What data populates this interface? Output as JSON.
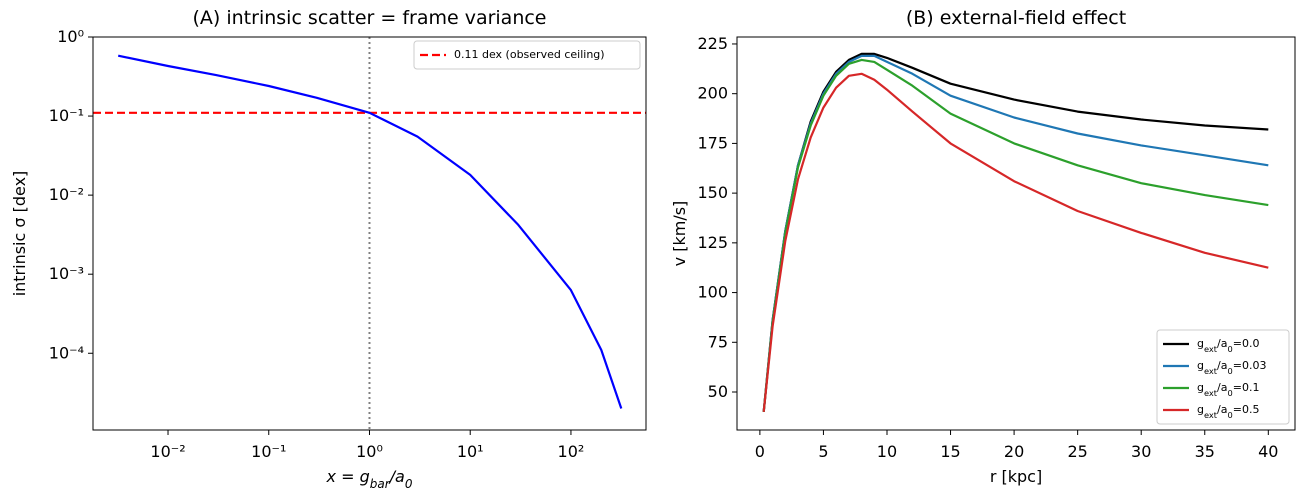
{
  "chart_data": [
    {
      "type": "line",
      "title": "(A) intrinsic scatter = frame variance",
      "x_label": "x = g_{bar}/a_{0}",
      "y_label": "intrinsic σ [dex]",
      "xscale": "log",
      "yscale": "log",
      "xlim": [
        0.0018,
        556
      ],
      "ylim": [
        1.07e-05,
        1
      ],
      "xticks": [
        {
          "value": 0.01,
          "label": "10⁻²"
        },
        {
          "value": 0.1,
          "label": "10⁻¹"
        },
        {
          "value": 1,
          "label": "10⁰"
        },
        {
          "value": 10,
          "label": "10¹"
        },
        {
          "value": 100,
          "label": "10²"
        }
      ],
      "yticks": [
        {
          "value": 1,
          "label": "10⁰"
        },
        {
          "value": 0.1,
          "label": "10⁻¹"
        },
        {
          "value": 0.01,
          "label": "10⁻²"
        },
        {
          "value": 0.001,
          "label": "10⁻³"
        },
        {
          "value": 0.0001,
          "label": "10⁻⁴"
        }
      ],
      "x": [
        0.0032,
        0.01,
        0.03,
        0.1,
        0.3,
        1,
        3,
        10,
        30,
        100,
        200,
        316
      ],
      "series": [
        {
          "color": "#0000ff",
          "values": [
            0.58,
            0.43,
            0.33,
            0.24,
            0.17,
            0.11,
            0.055,
            0.018,
            0.0042,
            0.00063,
            0.00011,
            2e-05
          ]
        }
      ],
      "hlines": [
        {
          "y": 0.11,
          "name": "0.11 dex (observed ceiling)",
          "color": "#ff0000",
          "style": "dashed"
        }
      ],
      "vlines": [
        {
          "x": 1,
          "color": "#808080",
          "style": "dotted"
        }
      ],
      "legend": "upper right"
    },
    {
      "type": "line",
      "title": "(B) external-field effect",
      "x_label": "r [kpc]",
      "y_label": "v [km/s]",
      "xscale": "linear",
      "yscale": "linear",
      "xlim": [
        -1.8,
        42.1
      ],
      "ylim": [
        30.9,
        228.5
      ],
      "xticks": [
        0,
        5,
        10,
        15,
        20,
        25,
        30,
        35,
        40
      ],
      "yticks": [
        50,
        75,
        100,
        125,
        150,
        175,
        200,
        225
      ],
      "x": [
        0.3,
        1,
        2,
        3,
        4,
        5,
        6,
        7,
        8,
        9,
        10,
        12,
        15,
        20,
        25,
        30,
        35,
        40
      ],
      "series": [
        {
          "name": "g_{ext}/a_{0}=0.0",
          "color": "#000000",
          "values": [
            40,
            86,
            131,
            164,
            186,
            201,
            211,
            217,
            220,
            220,
            218,
            213,
            205,
            197,
            191,
            187,
            184,
            182
          ]
        },
        {
          "name": "g_{ext}/a_{0}=0.03",
          "color": "#1f77b4",
          "values": [
            40,
            86,
            131,
            164,
            185,
            200,
            210,
            216,
            219,
            219,
            216,
            210,
            199,
            188,
            180,
            174,
            169,
            164
          ]
        },
        {
          "name": "g_{ext}/a_{0}=0.1",
          "color": "#2ca02c",
          "values": [
            40,
            85,
            130,
            163,
            184,
            199,
            209,
            215,
            217,
            216,
            212,
            204,
            190,
            175,
            164,
            155,
            149,
            144
          ]
        },
        {
          "name": "g_{ext}/a_{0}=0.5",
          "color": "#d62728",
          "values": [
            40,
            83,
            126,
            157,
            178,
            193,
            203,
            209,
            210,
            207,
            202,
            191,
            175,
            156,
            141,
            130,
            120,
            112.5
          ]
        }
      ],
      "legend": "lower right"
    }
  ]
}
